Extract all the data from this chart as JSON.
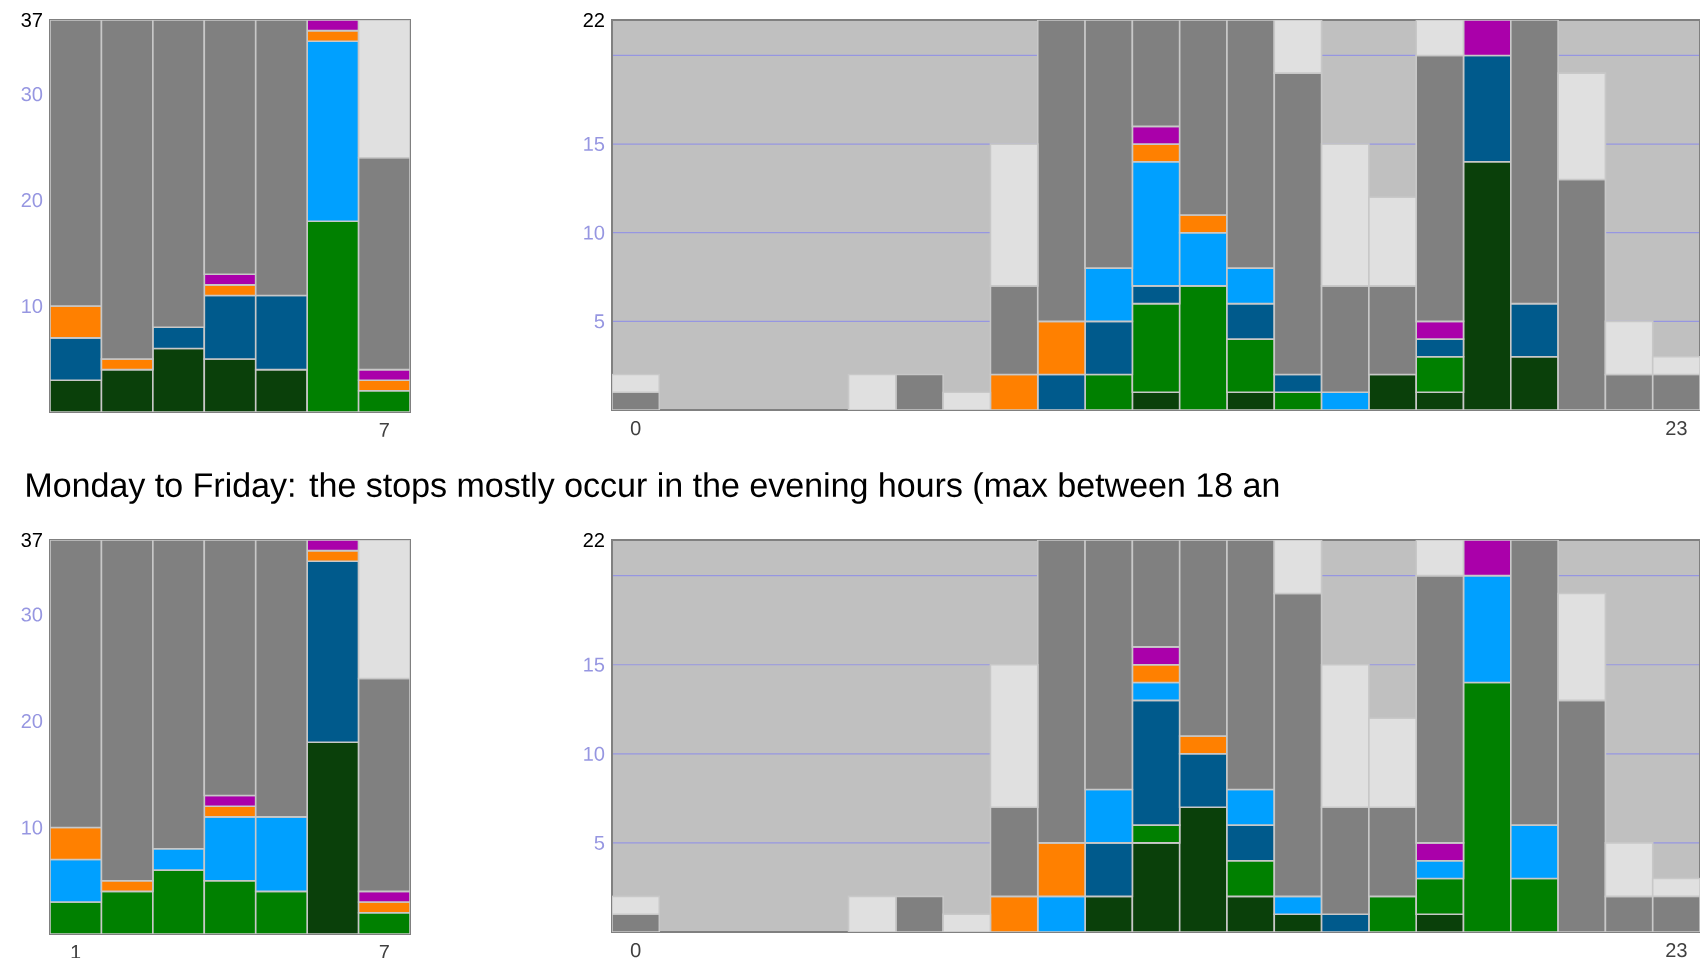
{
  "chart_data": [
    {
      "type": "bar",
      "stacked": true,
      "categories": [
        null,
        null,
        null,
        null,
        null,
        null,
        "7"
      ],
      "ylim": [
        0,
        37
      ],
      "yticks": [
        10,
        20,
        30,
        37
      ],
      "grid": "y",
      "annotations": [
        "Monday to Friday: the stops mostly occur in the evening hours (max between 18 an"
      ],
      "series": [
        {
          "color": "#0a400a",
          "values": [
            3,
            4,
            6,
            5,
            4,
            null,
            null
          ]
        },
        {
          "color": "#008000",
          "values": [
            null,
            null,
            null,
            null,
            null,
            18,
            2
          ]
        },
        {
          "color": "#005a8c",
          "values": [
            4,
            null,
            2,
            6,
            7,
            null,
            null
          ]
        },
        {
          "color": "#00a0ff",
          "values": [
            null,
            null,
            null,
            null,
            null,
            17,
            null
          ]
        },
        {
          "color": "#ff8000",
          "values": [
            3,
            1,
            null,
            1,
            null,
            1,
            1
          ]
        },
        {
          "color": "#aa00aa",
          "values": [
            null,
            null,
            null,
            1,
            null,
            1,
            1
          ]
        },
        {
          "color": "#808080",
          "values": [
            27,
            32,
            29,
            24,
            26,
            null,
            20
          ]
        },
        {
          "color": "#e0e0e0",
          "values": [
            null,
            null,
            null,
            null,
            null,
            null,
            13
          ]
        }
      ]
    },
    {
      "type": "bar",
      "stacked": true,
      "categories": [
        "0",
        null,
        null,
        null,
        null,
        null,
        null,
        null,
        null,
        null,
        null,
        null,
        null,
        null,
        null,
        null,
        null,
        null,
        null,
        null,
        null,
        null,
        "23"
      ],
      "ylim": [
        0,
        22
      ],
      "yticks": [
        5,
        10,
        15,
        {
          "value": 20,
          "label": null
        },
        22
      ],
      "grid": "y",
      "series": [
        {
          "color": "#0a400a",
          "values": [
            null,
            null,
            null,
            null,
            null,
            null,
            null,
            null,
            null,
            null,
            null,
            1,
            null,
            1,
            null,
            null,
            2,
            1,
            14,
            3,
            null,
            null,
            null
          ]
        },
        {
          "color": "#008000",
          "values": [
            null,
            null,
            null,
            null,
            null,
            null,
            null,
            null,
            null,
            null,
            2,
            5,
            7,
            3,
            1,
            null,
            null,
            2,
            null,
            null,
            null,
            null,
            null
          ]
        },
        {
          "color": "#005a8c",
          "values": [
            null,
            null,
            null,
            null,
            null,
            null,
            null,
            null,
            null,
            2,
            3,
            1,
            null,
            2,
            1,
            null,
            null,
            1,
            6,
            3,
            null,
            null,
            null
          ]
        },
        {
          "color": "#00a0ff",
          "values": [
            null,
            null,
            null,
            null,
            null,
            null,
            null,
            null,
            null,
            null,
            3,
            7,
            3,
            2,
            null,
            1,
            null,
            null,
            null,
            null,
            null,
            null,
            null
          ]
        },
        {
          "color": "#ff8000",
          "values": [
            null,
            null,
            null,
            null,
            null,
            null,
            null,
            null,
            2,
            3,
            null,
            1,
            1,
            null,
            null,
            null,
            null,
            null,
            null,
            null,
            null,
            null,
            null
          ]
        },
        {
          "color": "#aa00aa",
          "values": [
            null,
            null,
            null,
            null,
            null,
            null,
            null,
            null,
            null,
            null,
            null,
            1,
            null,
            null,
            null,
            null,
            null,
            1,
            2,
            null,
            null,
            null,
            null
          ]
        },
        {
          "color": "#808080",
          "values": [
            1,
            null,
            null,
            null,
            null,
            null,
            2,
            null,
            5,
            17,
            14,
            6,
            11,
            14,
            17,
            6,
            5,
            15,
            null,
            16,
            13,
            2,
            2
          ]
        },
        {
          "color": "#e0e0e0",
          "values": [
            1,
            null,
            null,
            null,
            null,
            2,
            null,
            1,
            8,
            null,
            null,
            null,
            null,
            null,
            3,
            8,
            5,
            2,
            null,
            null,
            6,
            3,
            1
          ]
        }
      ]
    },
    {
      "type": "bar",
      "stacked": true,
      "categories": [
        "1",
        null,
        null,
        null,
        null,
        null,
        "7"
      ],
      "ylim": [
        0,
        37
      ],
      "yticks": [
        10,
        20,
        30,
        37
      ],
      "grid": "y",
      "series": [
        {
          "color": "#0a400a",
          "values": [
            null,
            null,
            null,
            null,
            null,
            18,
            null
          ]
        },
        {
          "color": "#008000",
          "values": [
            3,
            4,
            6,
            5,
            4,
            null,
            2
          ]
        },
        {
          "color": "#005a8c",
          "values": [
            null,
            null,
            null,
            null,
            null,
            17,
            null
          ]
        },
        {
          "color": "#00a0ff",
          "values": [
            4,
            null,
            2,
            6,
            7,
            null,
            null
          ]
        },
        {
          "color": "#ff8000",
          "values": [
            3,
            1,
            null,
            1,
            null,
            1,
            1
          ]
        },
        {
          "color": "#aa00aa",
          "values": [
            null,
            null,
            null,
            1,
            null,
            1,
            1
          ]
        },
        {
          "color": "#808080",
          "values": [
            27,
            32,
            29,
            24,
            26,
            null,
            20
          ]
        },
        {
          "color": "#e0e0e0",
          "values": [
            null,
            null,
            null,
            null,
            null,
            null,
            13
          ]
        }
      ]
    },
    {
      "type": "bar",
      "stacked": true,
      "categories": [
        "0",
        null,
        null,
        null,
        null,
        null,
        null,
        null,
        null,
        null,
        null,
        null,
        null,
        null,
        null,
        null,
        null,
        null,
        null,
        null,
        null,
        null,
        "23"
      ],
      "ylim": [
        0,
        22
      ],
      "yticks": [
        5,
        10,
        15,
        {
          "value": 20,
          "label": null
        },
        22
      ],
      "grid": "y",
      "series": [
        {
          "color": "#0a400a",
          "values": [
            null,
            null,
            null,
            null,
            null,
            null,
            null,
            null,
            null,
            null,
            2,
            5,
            7,
            2,
            1,
            null,
            null,
            1,
            null,
            null,
            null,
            null,
            null
          ]
        },
        {
          "color": "#008000",
          "values": [
            null,
            null,
            null,
            null,
            null,
            null,
            null,
            null,
            null,
            null,
            null,
            1,
            null,
            2,
            null,
            null,
            2,
            2,
            14,
            3,
            null,
            null,
            null
          ]
        },
        {
          "color": "#005a8c",
          "values": [
            null,
            null,
            null,
            null,
            null,
            null,
            null,
            null,
            null,
            null,
            3,
            7,
            3,
            2,
            null,
            1,
            null,
            null,
            null,
            null,
            null,
            null,
            null
          ]
        },
        {
          "color": "#00a0ff",
          "values": [
            null,
            null,
            null,
            null,
            null,
            null,
            null,
            null,
            null,
            2,
            3,
            1,
            null,
            2,
            1,
            null,
            null,
            1,
            6,
            3,
            null,
            null,
            null
          ]
        },
        {
          "color": "#ff8000",
          "values": [
            null,
            null,
            null,
            null,
            null,
            null,
            null,
            null,
            2,
            3,
            null,
            1,
            1,
            null,
            null,
            null,
            null,
            null,
            null,
            null,
            null,
            null,
            null
          ]
        },
        {
          "color": "#aa00aa",
          "values": [
            null,
            null,
            null,
            null,
            null,
            null,
            null,
            null,
            null,
            null,
            null,
            1,
            null,
            null,
            null,
            null,
            null,
            1,
            2,
            null,
            null,
            null,
            null
          ]
        },
        {
          "color": "#808080",
          "values": [
            1,
            null,
            null,
            null,
            null,
            null,
            2,
            null,
            5,
            17,
            14,
            6,
            11,
            14,
            17,
            6,
            5,
            15,
            null,
            16,
            13,
            2,
            2
          ]
        },
        {
          "color": "#e0e0e0",
          "values": [
            1,
            null,
            null,
            null,
            null,
            2,
            null,
            1,
            8,
            null,
            null,
            null,
            null,
            null,
            3,
            8,
            5,
            2,
            null,
            null,
            6,
            3,
            1
          ]
        }
      ]
    }
  ]
}
